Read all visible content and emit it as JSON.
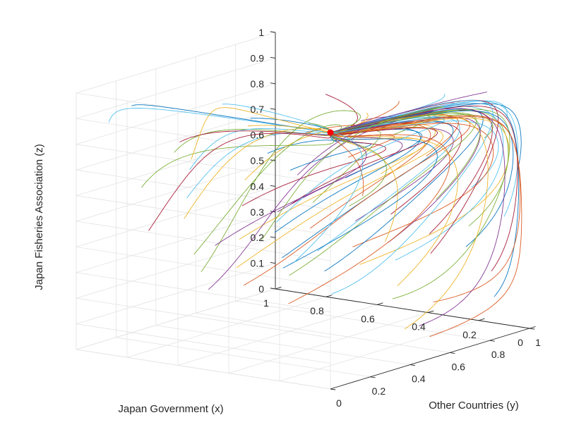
{
  "chart_data": {
    "type": "line",
    "projection": "3d",
    "title": "",
    "xlabel": "Japan Government (x)",
    "ylabel": "Other Countries (y)",
    "zlabel": "Japan Fisheries Association (z)",
    "xlim": [
      0,
      1
    ],
    "ylim": [
      0,
      1
    ],
    "zlim": [
      0,
      1
    ],
    "xticks": [
      "0",
      "0.2",
      "0.4",
      "0.6",
      "0.8",
      "1"
    ],
    "yticks": [
      "0",
      "0.2",
      "0.4",
      "0.6",
      "0.8",
      "1"
    ],
    "zticks": [
      "0",
      "0.1",
      "0.2",
      "0.3",
      "0.4",
      "0.5",
      "0.6",
      "0.7",
      "0.8",
      "0.9",
      "1"
    ],
    "grid": true,
    "colors": [
      "#0072BD",
      "#D95319",
      "#EDB120",
      "#7E2F8E",
      "#77AC30",
      "#4DBEEE",
      "#A2142F"
    ],
    "equilibrium_point": {
      "x": 0,
      "y": 0,
      "z": 1,
      "color": "#ff0000"
    },
    "trajectory_endpoint_note": "All trajectories converge to the point (0, 0, 1)",
    "series": [
      {
        "start": [
          0.9,
          0.15,
          0.93
        ],
        "color": "#0072BD"
      },
      {
        "start": [
          0.95,
          0.1,
          0.87
        ],
        "color": "#4DBEEE"
      },
      {
        "start": [
          0.7,
          0.35,
          0.92
        ],
        "color": "#4DBEEE"
      },
      {
        "start": [
          0.45,
          0.55,
          0.95
        ],
        "color": "#A2142F"
      },
      {
        "start": [
          0.85,
          0.3,
          0.72
        ],
        "color": "#77AC30"
      },
      {
        "start": [
          0.75,
          0.25,
          0.68
        ],
        "color": "#4DBEEE"
      },
      {
        "start": [
          0.6,
          0.45,
          0.72
        ],
        "color": "#0072BD"
      },
      {
        "start": [
          0.5,
          0.5,
          0.8
        ],
        "color": "#D95319"
      },
      {
        "start": [
          0.35,
          0.6,
          0.85
        ],
        "color": "#7E2F8E"
      },
      {
        "start": [
          0.9,
          0.2,
          0.6
        ],
        "color": "#77AC30"
      },
      {
        "start": [
          0.8,
          0.3,
          0.55
        ],
        "color": "#4DBEEE"
      },
      {
        "start": [
          0.65,
          0.4,
          0.62
        ],
        "color": "#EDB120"
      },
      {
        "start": [
          0.55,
          0.5,
          0.65
        ],
        "color": "#0072BD"
      },
      {
        "start": [
          0.4,
          0.6,
          0.7
        ],
        "color": "#D95319"
      },
      {
        "start": [
          0.3,
          0.7,
          0.78
        ],
        "color": "#77AC30"
      },
      {
        "start": [
          0.2,
          0.75,
          0.85
        ],
        "color": "#4DBEEE"
      },
      {
        "start": [
          0.15,
          0.8,
          0.9
        ],
        "color": "#7E2F8E"
      },
      {
        "start": [
          0.85,
          0.35,
          0.45
        ],
        "color": "#EDB120"
      },
      {
        "start": [
          0.7,
          0.45,
          0.5
        ],
        "color": "#A2142F"
      },
      {
        "start": [
          0.6,
          0.5,
          0.48
        ],
        "color": "#7E2F8E"
      },
      {
        "start": [
          0.5,
          0.55,
          0.52
        ],
        "color": "#77AC30"
      },
      {
        "start": [
          0.45,
          0.65,
          0.6
        ],
        "color": "#0072BD"
      },
      {
        "start": [
          0.35,
          0.7,
          0.62
        ],
        "color": "#EDB120"
      },
      {
        "start": [
          0.25,
          0.8,
          0.68
        ],
        "color": "#D95319"
      },
      {
        "start": [
          0.1,
          0.9,
          0.75
        ],
        "color": "#77AC30"
      },
      {
        "start": [
          0.05,
          0.95,
          0.82
        ],
        "color": "#4DBEEE"
      },
      {
        "start": [
          0.85,
          0.4,
          0.3
        ],
        "color": "#77AC30"
      },
      {
        "start": [
          0.75,
          0.5,
          0.35
        ],
        "color": "#EDB120"
      },
      {
        "start": [
          0.65,
          0.55,
          0.38
        ],
        "color": "#0072BD"
      },
      {
        "start": [
          0.55,
          0.6,
          0.4
        ],
        "color": "#D95319"
      },
      {
        "start": [
          0.45,
          0.7,
          0.42
        ],
        "color": "#7E2F8E"
      },
      {
        "start": [
          0.35,
          0.75,
          0.45
        ],
        "color": "#A2142F"
      },
      {
        "start": [
          0.25,
          0.85,
          0.5
        ],
        "color": "#77AC30"
      },
      {
        "start": [
          0.15,
          0.9,
          0.55
        ],
        "color": "#4DBEEE"
      },
      {
        "start": [
          0.05,
          1.0,
          0.6
        ],
        "color": "#0072BD"
      },
      {
        "start": [
          0.9,
          0.5,
          0.2
        ],
        "color": "#77AC30"
      },
      {
        "start": [
          0.8,
          0.55,
          0.22
        ],
        "color": "#EDB120"
      },
      {
        "start": [
          0.7,
          0.65,
          0.25
        ],
        "color": "#0072BD"
      },
      {
        "start": [
          0.6,
          0.7,
          0.28
        ],
        "color": "#4DBEEE"
      },
      {
        "start": [
          0.5,
          0.75,
          0.3
        ],
        "color": "#D95319"
      },
      {
        "start": [
          0.4,
          0.8,
          0.32
        ],
        "color": "#7E2F8E"
      },
      {
        "start": [
          0.3,
          0.88,
          0.35
        ],
        "color": "#A2142F"
      },
      {
        "start": [
          0.2,
          0.95,
          0.38
        ],
        "color": "#77AC30"
      },
      {
        "start": [
          0.1,
          1.0,
          0.42
        ],
        "color": "#4DBEEE"
      },
      {
        "start": [
          0.95,
          0.6,
          0.1
        ],
        "color": "#7E2F8E"
      },
      {
        "start": [
          0.85,
          0.65,
          0.12
        ],
        "color": "#D95319"
      },
      {
        "start": [
          0.75,
          0.75,
          0.15
        ],
        "color": "#77AC30"
      },
      {
        "start": [
          0.65,
          0.8,
          0.17
        ],
        "color": "#0072BD"
      },
      {
        "start": [
          0.55,
          0.85,
          0.2
        ],
        "color": "#EDB120"
      },
      {
        "start": [
          0.45,
          0.9,
          0.22
        ],
        "color": "#4DBEEE"
      },
      {
        "start": [
          0.35,
          0.95,
          0.25
        ],
        "color": "#A2142F"
      },
      {
        "start": [
          0.25,
          1.0,
          0.28
        ],
        "color": "#0072BD"
      },
      {
        "start": [
          0.15,
          1.0,
          0.2
        ],
        "color": "#A2142F"
      },
      {
        "start": [
          0.1,
          0.95,
          0.12
        ],
        "color": "#0072BD"
      },
      {
        "start": [
          0.3,
          0.9,
          0.08
        ],
        "color": "#D95319"
      },
      {
        "start": [
          0.5,
          0.95,
          0.05
        ],
        "color": "#77AC30"
      },
      {
        "start": [
          0.7,
          0.9,
          0.05
        ],
        "color": "#4DBEEE"
      },
      {
        "start": [
          0.6,
          0.35,
          0.85
        ],
        "color": "#EDB120"
      },
      {
        "start": [
          0.75,
          0.2,
          0.8
        ],
        "color": "#A2142F"
      },
      {
        "start": [
          0.55,
          0.3,
          0.9
        ],
        "color": "#0072BD"
      },
      {
        "start": [
          0.4,
          0.4,
          0.88
        ],
        "color": "#77AC30"
      },
      {
        "start": [
          0.25,
          0.5,
          0.92
        ],
        "color": "#EDB120"
      },
      {
        "start": [
          0.2,
          0.6,
          0.95
        ],
        "color": "#D95319"
      },
      {
        "start": [
          0.1,
          0.7,
          0.97
        ],
        "color": "#4DBEEE"
      },
      {
        "start": [
          0.05,
          0.85,
          0.95
        ],
        "color": "#7E2F8E"
      },
      {
        "start": [
          0.1,
          0.5,
          0.1
        ],
        "color": "#EDB120"
      },
      {
        "start": [
          0.05,
          0.4,
          0.3
        ],
        "color": "#EDB120"
      },
      {
        "start": [
          0.02,
          0.3,
          0.5
        ],
        "color": "#EDB120"
      },
      {
        "start": [
          0.03,
          0.2,
          0.7
        ],
        "color": "#D95319"
      },
      {
        "start": [
          0.08,
          0.6,
          0.05
        ],
        "color": "#D95319"
      },
      {
        "start": [
          0.2,
          0.7,
          0.05
        ],
        "color": "#7E2F8E"
      },
      {
        "start": [
          0.6,
          0.6,
          0.6
        ],
        "color": "#7E2F8E"
      },
      {
        "start": [
          0.7,
          0.7,
          0.45
        ],
        "color": "#A2142F"
      },
      {
        "start": [
          0.8,
          0.75,
          0.35
        ],
        "color": "#4DBEEE"
      },
      {
        "start": [
          0.9,
          0.8,
          0.25
        ],
        "color": "#77AC30"
      },
      {
        "start": [
          0.5,
          0.4,
          0.3
        ],
        "color": "#0072BD"
      },
      {
        "start": [
          0.4,
          0.3,
          0.2
        ],
        "color": "#D95319"
      },
      {
        "start": [
          0.3,
          0.2,
          0.4
        ],
        "color": "#4DBEEE"
      },
      {
        "start": [
          0.2,
          0.35,
          0.6
        ],
        "color": "#77AC30"
      },
      {
        "start": [
          0.65,
          0.25,
          0.4
        ],
        "color": "#7E2F8E"
      },
      {
        "start": [
          0.9,
          0.45,
          0.65
        ],
        "color": "#EDB120"
      },
      {
        "start": [
          0.95,
          0.3,
          0.4
        ],
        "color": "#A2142F"
      }
    ]
  }
}
